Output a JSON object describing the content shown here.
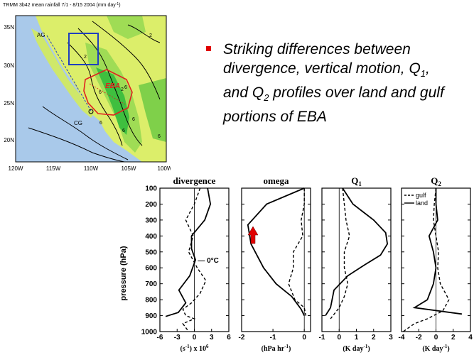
{
  "map": {
    "title": "TRMM 3b42 mean rainfall 7/1 - 8/15 2004 (mm day",
    "title_sup": "-1",
    "title_end": ")",
    "lat_labels": [
      "35N",
      "30N",
      "25N",
      "20N"
    ],
    "lon_labels": [
      "120W",
      "115W",
      "110W",
      "105W",
      "100W"
    ],
    "region_labels": {
      "ag": "AG",
      "cg": "CG",
      "eba": "EBA"
    },
    "contour_labels": [
      "2",
      "6",
      "6",
      "2",
      "6",
      "6",
      "6",
      "2",
      "6"
    ],
    "colors": {
      "ocean": "#a9c9ea",
      "land_low": "#dcee6a",
      "land_mid": "#9fdc55",
      "land_high": "#3fbf3f",
      "box": "#1f3fbf",
      "eba": "#e02020"
    }
  },
  "bullet": {
    "line1": "Striking differences between",
    "line2": "divergence, vertical motion, Q",
    "line2_sub": "1",
    "line2_end": ",",
    "line3": "and Q",
    "line3_sub": "2",
    "line3_end": " profiles over land and gulf",
    "line4": "portions of EBA"
  },
  "chart_data": {
    "type": "line",
    "ylabel": "pressure (hPa)",
    "yticks": [
      100,
      200,
      300,
      400,
      500,
      600,
      700,
      800,
      900,
      1000
    ],
    "ylim": [
      1000,
      100
    ],
    "panels": [
      {
        "title": "divergence",
        "title_sub": "",
        "xlabel": "(s",
        "xlabel_sup": "-1",
        "xlabel_end": ") x 10",
        "xlabel_sup2": "6",
        "xticks": [
          -6,
          -3,
          0,
          3,
          6
        ],
        "xtick_labels": [
          "-6",
          "-3",
          "0",
          "3",
          "6"
        ],
        "xlim": [
          -6,
          6
        ],
        "annotation": "— 0°C",
        "annotation_p": 550,
        "series": [
          {
            "name": "land",
            "style": "solid",
            "points": [
              [
                2.3,
                100
              ],
              [
                2.8,
                200
              ],
              [
                1.8,
                300
              ],
              [
                -0.5,
                400
              ],
              [
                -0.5,
                480
              ],
              [
                0.2,
                550
              ],
              [
                -0.8,
                650
              ],
              [
                -2.7,
                740
              ],
              [
                -1.5,
                820
              ],
              [
                -2.8,
                880
              ],
              [
                -5.0,
                905
              ]
            ]
          },
          {
            "name": "gulf",
            "style": "dashed",
            "points": [
              [
                1.0,
                100
              ],
              [
                0.0,
                200
              ],
              [
                -1.5,
                300
              ],
              [
                -0.2,
                400
              ],
              [
                -1.0,
                500
              ],
              [
                0.5,
                600
              ],
              [
                2.0,
                680
              ],
              [
                1.0,
                760
              ],
              [
                -0.5,
                820
              ],
              [
                -2.0,
                860
              ],
              [
                -1.5,
                900
              ],
              [
                0.0,
                920
              ],
              [
                -2.0,
                950
              ],
              [
                -1.0,
                1000
              ]
            ]
          }
        ]
      },
      {
        "title": "omega",
        "title_sub": "",
        "xlabel": "(hPa hr",
        "xlabel_sup": "-1",
        "xlabel_end": ")",
        "xlabel_sup2": "",
        "xticks": [
          -2,
          -1,
          0
        ],
        "xtick_labels": [
          "-2",
          "-1",
          "0"
        ],
        "xlim": [
          -2,
          0.2
        ],
        "series": [
          {
            "name": "land",
            "style": "solid",
            "points": [
              [
                0.0,
                100
              ],
              [
                -1.2,
                200
              ],
              [
                -1.8,
                330
              ],
              [
                -1.7,
                450
              ],
              [
                -1.3,
                600
              ],
              [
                -0.9,
                700
              ],
              [
                -0.4,
                780
              ],
              [
                -0.1,
                860
              ],
              [
                0.0,
                900
              ]
            ]
          },
          {
            "name": "gulf",
            "style": "dashed",
            "points": [
              [
                0.0,
                100
              ],
              [
                0.0,
                200
              ],
              [
                -0.1,
                300
              ],
              [
                -0.05,
                400
              ],
              [
                -0.35,
                500
              ],
              [
                -0.35,
                600
              ],
              [
                -0.5,
                700
              ],
              [
                -0.3,
                800
              ],
              [
                0.0,
                850
              ],
              [
                0.05,
                900
              ]
            ]
          }
        ]
      },
      {
        "title": "Q",
        "title_sub": "1",
        "xlabel": "(K day",
        "xlabel_sup": "-1",
        "xlabel_end": ")",
        "xlabel_sup2": "",
        "xticks": [
          -1,
          0,
          1,
          2,
          3
        ],
        "xtick_labels": [
          "-1",
          "0",
          "1",
          "2",
          "3"
        ],
        "xlim": [
          -1,
          3
        ],
        "series": [
          {
            "name": "land",
            "style": "solid",
            "points": [
              [
                0.2,
                100
              ],
              [
                0.8,
                200
              ],
              [
                2.0,
                300
              ],
              [
                2.7,
                380
              ],
              [
                2.8,
                450
              ],
              [
                2.4,
                520
              ],
              [
                1.5,
                580
              ],
              [
                0.5,
                650
              ],
              [
                -0.3,
                740
              ],
              [
                -0.5,
                850
              ],
              [
                -0.8,
                900
              ]
            ]
          },
          {
            "name": "gulf",
            "style": "dashed",
            "points": [
              [
                0.2,
                100
              ],
              [
                0.3,
                200
              ],
              [
                0.4,
                300
              ],
              [
                0.6,
                400
              ],
              [
                0.3,
                500
              ],
              [
                0.3,
                600
              ],
              [
                0.5,
                700
              ],
              [
                0.3,
                780
              ],
              [
                0.0,
                850
              ],
              [
                -0.5,
                920
              ]
            ]
          }
        ]
      },
      {
        "title": "Q",
        "title_sub": "2",
        "xlabel": "(K day",
        "xlabel_sup": "-1",
        "xlabel_end": ")",
        "xlabel_sup2": "",
        "xticks": [
          -4,
          -2,
          0,
          2,
          4
        ],
        "xtick_labels": [
          "-4",
          "-2",
          "0",
          "2",
          "4"
        ],
        "xlim": [
          -4,
          4
        ],
        "legend": {
          "placement": "top-left",
          "entries": [
            "gulf",
            "land"
          ]
        },
        "series": [
          {
            "name": "land",
            "style": "solid",
            "points": [
              [
                0.0,
                100
              ],
              [
                0.0,
                200
              ],
              [
                0.2,
                300
              ],
              [
                -0.8,
                400
              ],
              [
                -0.3,
                500
              ],
              [
                0.0,
                600
              ],
              [
                -0.3,
                700
              ],
              [
                -1.0,
                800
              ],
              [
                -2.5,
                850
              ],
              [
                3.0,
                890
              ]
            ]
          },
          {
            "name": "gulf",
            "style": "dashed",
            "points": [
              [
                0.0,
                100
              ],
              [
                -0.2,
                200
              ],
              [
                -0.3,
                300
              ],
              [
                0.0,
                400
              ],
              [
                0.3,
                500
              ],
              [
                0.2,
                600
              ],
              [
                0.5,
                700
              ],
              [
                1.5,
                800
              ],
              [
                0.8,
                870
              ],
              [
                -1.0,
                920
              ],
              [
                -2.5,
                950
              ],
              [
                -3.8,
                1000
              ]
            ]
          }
        ]
      }
    ]
  }
}
